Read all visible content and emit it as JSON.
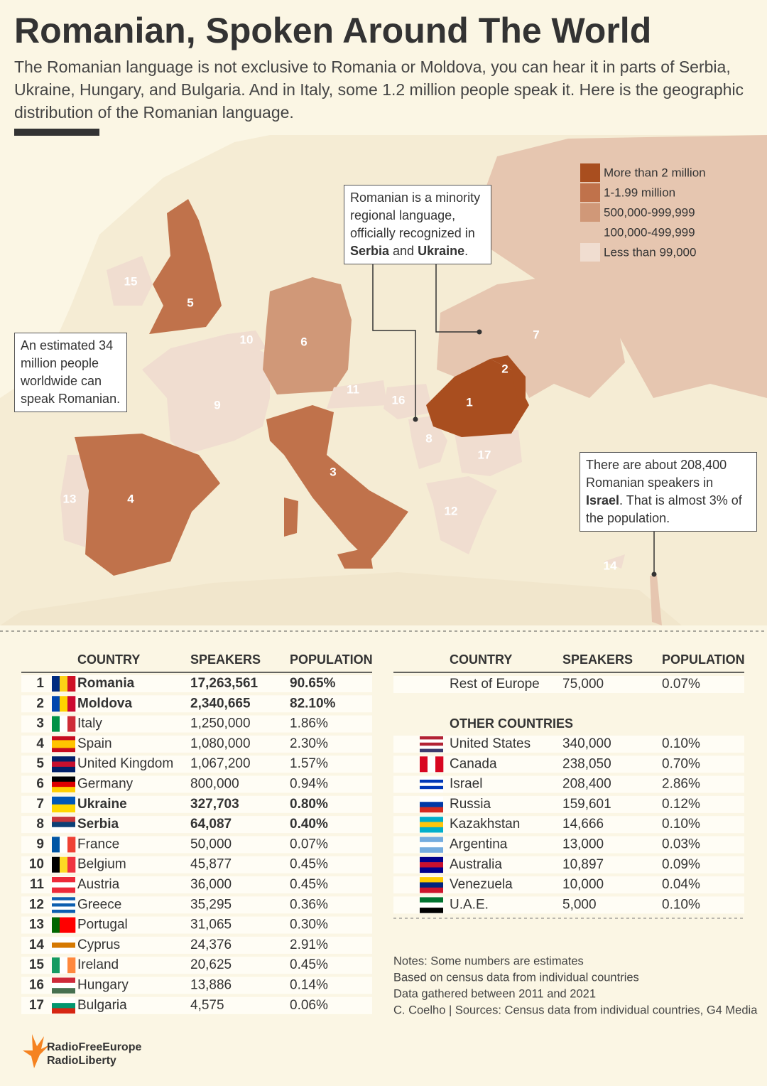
{
  "header": {
    "title": "Romanian, Spoken Around The World",
    "subtitle": "The Romanian language is not exclusive to Romania or Moldova, you can hear it in parts of Serbia, Ukraine, Hungary, and Bulgaria. And in Italy, some 1.2 million people speak it. Here is the geographic distribution of the Romanian language."
  },
  "legend": {
    "items": [
      {
        "label": "More than 2 million",
        "color": "#a94e1f"
      },
      {
        "label": "1-1.99 million",
        "color": "#c0724b"
      },
      {
        "label": "500,000-999,999",
        "color": "#d09878"
      },
      {
        "label": "100,000-499,999",
        "color": "#e6c6b0"
      },
      {
        "label": "Less than 99,000",
        "color": "#f0ddd0"
      }
    ]
  },
  "callouts": [
    {
      "parts": [
        "Romanian is a minority regional language, officially recognized in ",
        "Serbia",
        " and ",
        "Ukraine",
        "."
      ]
    },
    {
      "parts": [
        "An estimated 34 million people worldwide can speak Romanian."
      ]
    },
    {
      "parts": [
        "There are about 208,400 Romanian speakers in ",
        "Israel",
        ". That is almost 3% of the population."
      ]
    }
  ],
  "map_labels": [
    "1",
    "2",
    "3",
    "4",
    "5",
    "6",
    "7",
    "8",
    "9",
    "10",
    "11",
    "12",
    "13",
    "14",
    "15",
    "16",
    "17"
  ],
  "table": {
    "columns": [
      "COUNTRY",
      "SPEAKERS",
      "POPULATION"
    ],
    "rows": [
      {
        "rank": "1",
        "country": "Romania",
        "speakers": "17,263,561",
        "population": "90.65%",
        "bold": true,
        "flag_v": [
          "#002b7f",
          "#fcd116",
          "#ce1126"
        ]
      },
      {
        "rank": "2",
        "country": "Moldova",
        "speakers": "2,340,665",
        "population": "82.10%",
        "bold": true,
        "flag_v": [
          "#0046ae",
          "#ffd200",
          "#cc092f"
        ]
      },
      {
        "rank": "3",
        "country": "Italy",
        "speakers": "1,250,000",
        "population": "1.86%",
        "bold": false,
        "flag_v": [
          "#009246",
          "#ffffff",
          "#ce2b37"
        ]
      },
      {
        "rank": "4",
        "country": "Spain",
        "speakers": "1,080,000",
        "population": "2.30%",
        "bold": false,
        "flag_h": [
          "#c60b1e",
          "#ffc400",
          "#ffc400",
          "#c60b1e"
        ]
      },
      {
        "rank": "5",
        "country": "United Kingdom",
        "speakers": "1,067,200",
        "population": "1.57%",
        "bold": false,
        "flag_h": [
          "#012169",
          "#c8102e",
          "#012169"
        ]
      },
      {
        "rank": "6",
        "country": "Germany",
        "speakers": "800,000",
        "population": "0.94%",
        "bold": false,
        "flag_h": [
          "#000000",
          "#dd0000",
          "#ffce00"
        ]
      },
      {
        "rank": "7",
        "country": "Ukraine",
        "speakers": "327,703",
        "population": "0.80%",
        "bold": true,
        "flag_h": [
          "#0057b7",
          "#ffd700"
        ]
      },
      {
        "rank": "8",
        "country": "Serbia",
        "speakers": "64,087",
        "population": "0.40%",
        "bold": true,
        "flag_h": [
          "#c6363c",
          "#0c4076",
          "#ffffff"
        ]
      },
      {
        "rank": "9",
        "country": "France",
        "speakers": "50,000",
        "population": "0.07%",
        "bold": false,
        "flag_v": [
          "#0055a4",
          "#ffffff",
          "#ef4135"
        ]
      },
      {
        "rank": "10",
        "country": "Belgium",
        "speakers": "45,877",
        "population": "0.45%",
        "bold": false,
        "flag_v": [
          "#000000",
          "#fdda24",
          "#ef3340"
        ]
      },
      {
        "rank": "11",
        "country": "Austria",
        "speakers": "36,000",
        "population": "0.45%",
        "bold": false,
        "flag_h": [
          "#ed2939",
          "#ffffff",
          "#ed2939"
        ]
      },
      {
        "rank": "12",
        "country": "Greece",
        "speakers": "35,295",
        "population": "0.36%",
        "bold": false,
        "flag_h": [
          "#0d5eaf",
          "#ffffff",
          "#0d5eaf",
          "#ffffff",
          "#0d5eaf"
        ]
      },
      {
        "rank": "13",
        "country": "Portugal",
        "speakers": "31,065",
        "population": "0.30%",
        "bold": false,
        "flag_v": [
          "#006600",
          "#ff0000",
          "#ff0000"
        ]
      },
      {
        "rank": "14",
        "country": "Cyprus",
        "speakers": "24,376",
        "population": "2.91%",
        "bold": false,
        "flag_h": [
          "#ffffff",
          "#d57800",
          "#ffffff"
        ]
      },
      {
        "rank": "15",
        "country": "Ireland",
        "speakers": "20,625",
        "population": "0.45%",
        "bold": false,
        "flag_v": [
          "#169b62",
          "#ffffff",
          "#ff883e"
        ]
      },
      {
        "rank": "16",
        "country": "Hungary",
        "speakers": "13,886",
        "population": "0.14%",
        "bold": false,
        "flag_h": [
          "#ce2939",
          "#ffffff",
          "#477050"
        ]
      },
      {
        "rank": "17",
        "country": "Bulgaria",
        "speakers": "4,575",
        "population": "0.06%",
        "bold": false,
        "flag_h": [
          "#ffffff",
          "#00966e",
          "#d62612"
        ]
      }
    ]
  },
  "europe_rest": {
    "columns": [
      "COUNTRY",
      "SPEAKERS",
      "POPULATION"
    ],
    "rows": [
      {
        "country": "Rest of Europe",
        "speakers": "75,000",
        "population": "0.07%"
      }
    ]
  },
  "other_countries": {
    "title": "OTHER COUNTRIES",
    "rows": [
      {
        "country": "United States",
        "speakers": "340,000",
        "population": "0.10%",
        "flag_h": [
          "#b22234",
          "#ffffff",
          "#b22234",
          "#ffffff",
          "#3c3b6e"
        ]
      },
      {
        "country": "Canada",
        "speakers": "238,050",
        "population": "0.70%",
        "flag_v": [
          "#d80621",
          "#ffffff",
          "#d80621"
        ]
      },
      {
        "country": "Israel",
        "speakers": "208,400",
        "population": "2.86%",
        "flag_h": [
          "#ffffff",
          "#0038b8",
          "#ffffff",
          "#0038b8",
          "#ffffff"
        ]
      },
      {
        "country": "Russia",
        "speakers": "159,601",
        "population": "0.12%",
        "flag_h": [
          "#ffffff",
          "#0039a6",
          "#d52b1e"
        ]
      },
      {
        "country": "Kazakhstan",
        "speakers": "14,666",
        "population": "0.10%",
        "flag_h": [
          "#00afca",
          "#fec50c",
          "#00afca"
        ]
      },
      {
        "country": "Argentina",
        "speakers": "13,000",
        "population": "0.03%",
        "flag_h": [
          "#74acdf",
          "#ffffff",
          "#74acdf"
        ]
      },
      {
        "country": "Australia",
        "speakers": "10,897",
        "population": "0.09%",
        "flag_h": [
          "#00008b",
          "#c8102e",
          "#00008b"
        ]
      },
      {
        "country": "Venezuela",
        "speakers": "10,000",
        "population": "0.04%",
        "flag_h": [
          "#ffcc00",
          "#00247d",
          "#cf142b"
        ]
      },
      {
        "country": "U.A.E.",
        "speakers": "5,000",
        "population": "0.10%",
        "flag_h": [
          "#00732f",
          "#ffffff",
          "#000000"
        ]
      }
    ]
  },
  "notes": [
    "Notes: Some numbers are estimates",
    "Based on census data from individual countries",
    "Data gathered between 2011 and 2021",
    "C. Coelho | Sources: Census data from individual countries, G4 Media"
  ],
  "logo": [
    "RadioFreeEurope",
    "RadioLiberty"
  ]
}
